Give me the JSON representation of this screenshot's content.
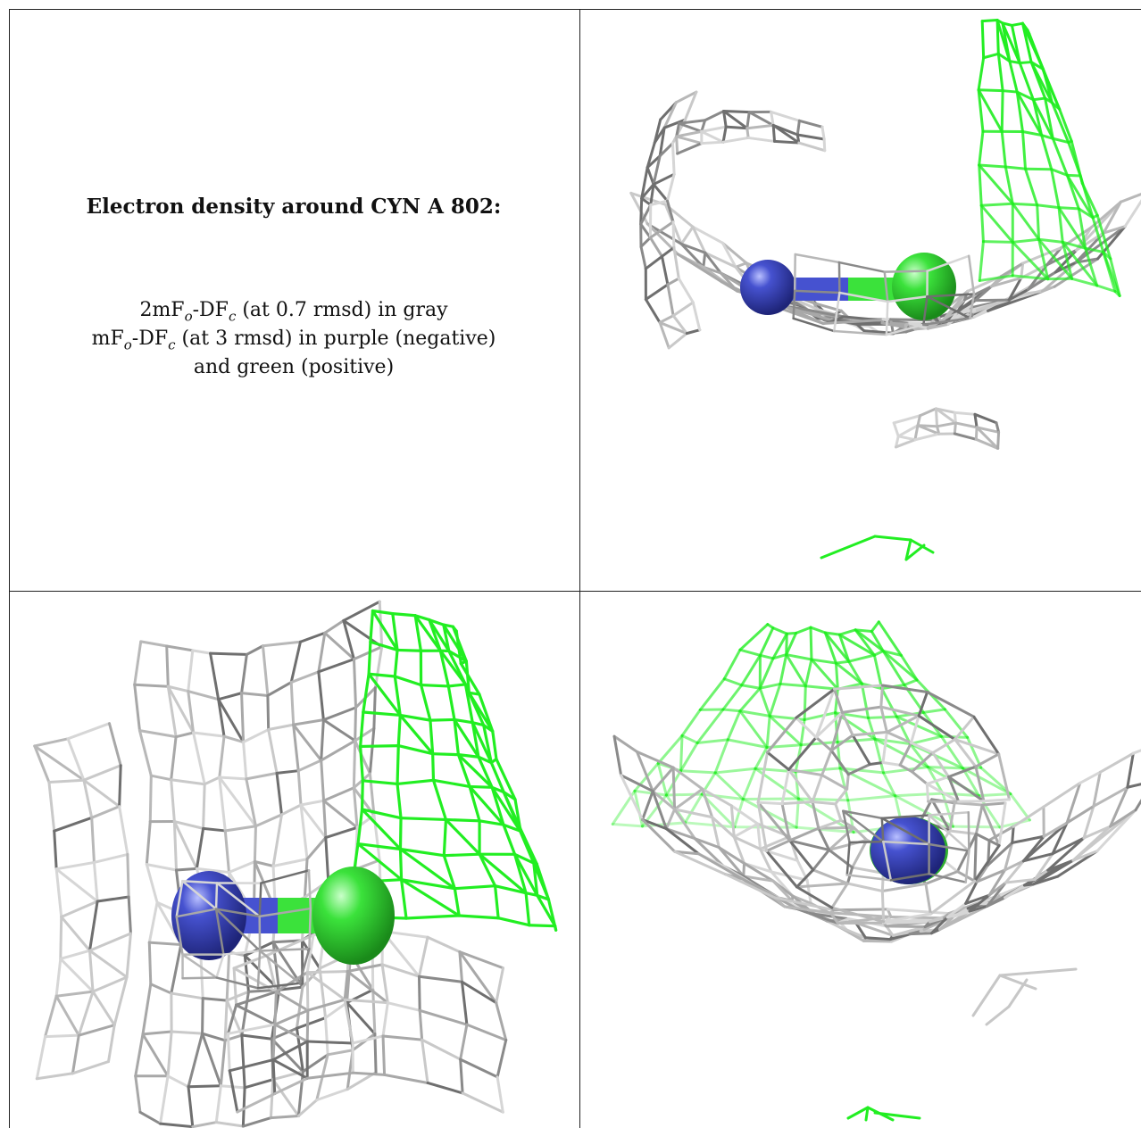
{
  "caption": {
    "title": "Electron density around CYN A 802:",
    "lines": [
      {
        "pre": "2mF",
        "s1": "o",
        "mid": "-DF",
        "s2": "c",
        "post": " (at 0.7 rmsd) in gray"
      },
      {
        "pre": "mF",
        "s1": "o",
        "mid": "-DF",
        "s2": "c",
        "post": " (at 3 rmsd) in purple (negative)"
      },
      {
        "pre": "",
        "s1": "",
        "mid": "",
        "s2": "",
        "post": "and green (positive)"
      }
    ]
  },
  "colors": {
    "mesh_gray": "#b8b8b8",
    "mesh_gray_dark": "#6f6f6f",
    "mesh_green": "#22ee22",
    "atom_blue": "#3d49c6",
    "atom_green": "#3be23b"
  },
  "panels": [
    {
      "name": "view-top-right"
    },
    {
      "name": "view-bottom-left"
    },
    {
      "name": "view-bottom-right"
    }
  ]
}
